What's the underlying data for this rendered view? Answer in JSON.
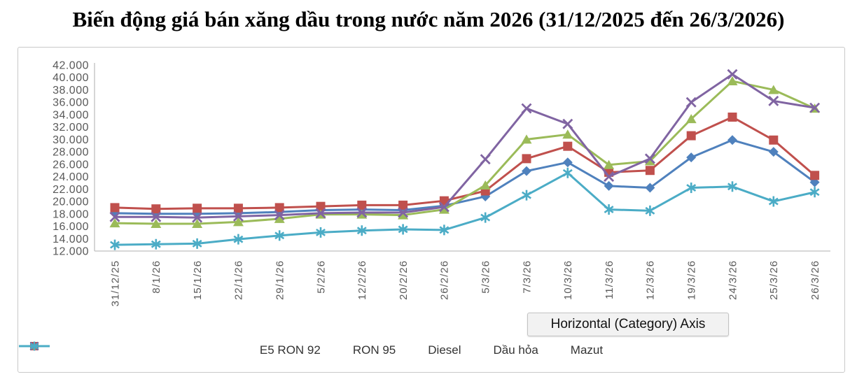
{
  "title": "Biến động giá bán xăng dầu trong nước năm 2026 (31/12/2025 đến 26/3/2026)",
  "tooltip": "Horizontal (Category) Axis",
  "chart_data": {
    "type": "line",
    "title": "Biến động giá bán xăng dầu trong nước năm 2026 (31/12/2025 đến 26/3/2026)",
    "categories": [
      "31/12/25",
      "8/1/26",
      "15/1/26",
      "22/1/26",
      "29/1/26",
      "5/2/26",
      "12/2/26",
      "20/2/26",
      "26/2/26",
      "5/3/26",
      "7/3/26",
      "10/3/26",
      "11/3/26",
      "12/3/26",
      "19/3/26",
      "24/3/26",
      "25/3/26",
      "26/3/26"
    ],
    "series": [
      {
        "name": "E5 RON 92",
        "color": "#4F81BD",
        "marker": "diamond",
        "values": [
          18100,
          18000,
          18000,
          18100,
          18300,
          18600,
          18700,
          18600,
          19300,
          20800,
          24900,
          26300,
          22500,
          22200,
          27100,
          29900,
          28000,
          23100
        ]
      },
      {
        "name": "RON 95",
        "color": "#C0504D",
        "marker": "square",
        "values": [
          19000,
          18800,
          18900,
          18900,
          19000,
          19200,
          19400,
          19400,
          20100,
          21700,
          26900,
          28900,
          24700,
          25000,
          30600,
          33600,
          29900,
          24200
        ]
      },
      {
        "name": "Diesel",
        "color": "#9BBB59",
        "marker": "triangle",
        "values": [
          16500,
          16400,
          16400,
          16700,
          17200,
          17900,
          17900,
          17800,
          18700,
          22600,
          30000,
          30800,
          25900,
          26500,
          33300,
          39400,
          38000,
          35000
        ]
      },
      {
        "name": "Dầu hỏa",
        "color": "#8064A2",
        "marker": "x",
        "values": [
          17500,
          17500,
          17400,
          17600,
          17800,
          18100,
          18200,
          18200,
          19100,
          26800,
          35000,
          32500,
          24000,
          26900,
          36000,
          40500,
          36200,
          35100
        ]
      },
      {
        "name": "Mazut",
        "color": "#4BACC6",
        "marker": "asterisk",
        "values": [
          13000,
          13100,
          13200,
          13900,
          14500,
          15000,
          15300,
          15500,
          15400,
          17400,
          21000,
          24600,
          18700,
          18500,
          22200,
          22400,
          20000,
          21500
        ]
      }
    ],
    "y_axis": {
      "min": 12000,
      "max": 42000,
      "step": 2000,
      "tick_labels": [
        "12.000",
        "14.000",
        "16.000",
        "18.000",
        "20.000",
        "22.000",
        "24.000",
        "26.000",
        "28.000",
        "30.000",
        "32.000",
        "34.000",
        "36.000",
        "38.000",
        "40.000",
        "42.000"
      ]
    },
    "x_axis_label_rotation": -90,
    "legend_position": "bottom",
    "grid": false,
    "axis_color": "#bfbfbf",
    "tick_text_color": "#595959"
  }
}
